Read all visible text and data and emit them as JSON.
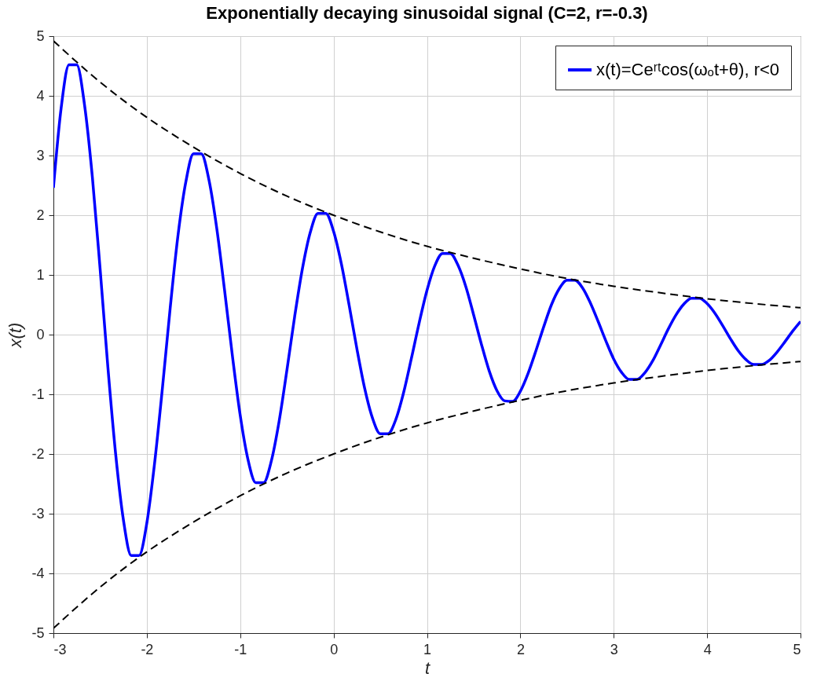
{
  "chart_data": {
    "type": "line",
    "title": "Exponentially decaying sinusoidal signal (C=2, r=-0.3)",
    "xlabel": "t",
    "ylabel": "x(t)",
    "xlim": [
      -3,
      5
    ],
    "xticks": [
      -3,
      -2,
      -1,
      0,
      1,
      2,
      3,
      4,
      5
    ],
    "ylim": [
      -5,
      5
    ],
    "yticks": [
      -5,
      -4,
      -3,
      -2,
      -1,
      0,
      1,
      2,
      3,
      4,
      5
    ],
    "grid": true,
    "legend": "top right",
    "line_style": "solid",
    "series": [
      {
        "name": "x(t)=Ceʳᵗcos(ωₒt+θ), r<0",
        "color": "#0000ff",
        "x": [
          -3,
          -2.917,
          -2.833,
          -2.75,
          -2.667,
          -2.583,
          -2.5,
          -2.417,
          -2.333,
          -2.25,
          -2.167,
          -2.083,
          -2,
          -1.917,
          -1.833,
          -1.75,
          -1.667,
          -1.583,
          -1.5,
          -1.417,
          -1.333,
          -1.25,
          -1.167,
          -1.083,
          -1,
          -0.917,
          -0.833,
          -0.75,
          -0.667,
          -0.583,
          -0.5,
          -0.417,
          -0.333,
          -0.25,
          -0.167,
          -0.083,
          0,
          0.083,
          0.167,
          0.25,
          0.333,
          0.417,
          0.5,
          0.583,
          0.667,
          0.75,
          0.833,
          0.917,
          1,
          1.083,
          1.167,
          1.25,
          1.333,
          1.417,
          1.5,
          1.583,
          1.667,
          1.75,
          1.833,
          1.917,
          2,
          2.083,
          2.167,
          2.25,
          2.333,
          2.417,
          2.5,
          2.583,
          2.667,
          2.75,
          2.833,
          2.917,
          3,
          3.083,
          3.167,
          3.25,
          3.333,
          3.417,
          3.5,
          3.583,
          3.667,
          3.75,
          3.833,
          3.917,
          4,
          4.083,
          4.167,
          4.25,
          4.333,
          4.417,
          4.5,
          4.583,
          4.667,
          4.75,
          4.833,
          4.917,
          5
        ],
        "values": [
          2.46,
          3.8,
          4.52,
          4.52,
          3.85,
          2.64,
          1.1,
          -0.54,
          -2.01,
          -3.11,
          -3.7,
          -3.7,
          -3.16,
          -2.16,
          -0.9,
          0.44,
          1.65,
          2.55,
          3.03,
          3.03,
          2.58,
          1.77,
          0.74,
          -0.36,
          -1.35,
          -2.09,
          -2.48,
          -2.48,
          -2.12,
          -1.45,
          -0.6,
          0.3,
          1.11,
          1.71,
          2.03,
          2.03,
          1.73,
          1.19,
          0.49,
          -0.24,
          -0.9,
          -1.4,
          -1.66,
          -1.66,
          -1.42,
          -0.97,
          -0.4,
          0.2,
          0.74,
          1.15,
          1.36,
          1.36,
          1.16,
          0.8,
          0.33,
          -0.16,
          -0.61,
          -0.94,
          -1.11,
          -1.12,
          -0.95,
          -0.65,
          -0.27,
          0.13,
          0.5,
          0.77,
          0.91,
          0.91,
          0.78,
          0.53,
          0.22,
          -0.11,
          -0.41,
          -0.63,
          -0.75,
          -0.75,
          -0.64,
          -0.44,
          -0.18,
          0.09,
          0.33,
          0.51,
          0.61,
          0.61,
          0.52,
          0.36,
          0.15,
          -0.07,
          -0.27,
          -0.42,
          -0.5,
          -0.5,
          -0.43,
          -0.29,
          -0.12,
          0.06,
          0.22
        ]
      },
      {
        "color": "#000000",
        "line_style": "dashed",
        "x": [
          -3,
          -2.5,
          -2,
          -1.5,
          -1,
          -0.5,
          0,
          0.5,
          1,
          1.5,
          2,
          2.5,
          3,
          3.5,
          4,
          4.5,
          5
        ],
        "values": [
          4.92,
          4.23,
          3.64,
          3.14,
          2.7,
          2.32,
          2,
          1.72,
          1.48,
          1.28,
          1.1,
          0.94,
          0.81,
          0.7,
          0.6,
          0.52,
          0.45
        ]
      },
      {
        "color": "#000000",
        "line_style": "dashed",
        "x": [
          -3,
          -2.5,
          -2,
          -1.5,
          -1,
          -0.5,
          0,
          0.5,
          1,
          1.5,
          2,
          2.5,
          3,
          3.5,
          4,
          4.5,
          5
        ],
        "values": [
          -4.92,
          -4.23,
          -3.64,
          -3.14,
          -2.7,
          -2.32,
          -2,
          -1.72,
          -1.48,
          -1.28,
          -1.1,
          -0.94,
          -0.81,
          -0.7,
          -0.6,
          -0.52,
          -0.45
        ]
      }
    ]
  }
}
